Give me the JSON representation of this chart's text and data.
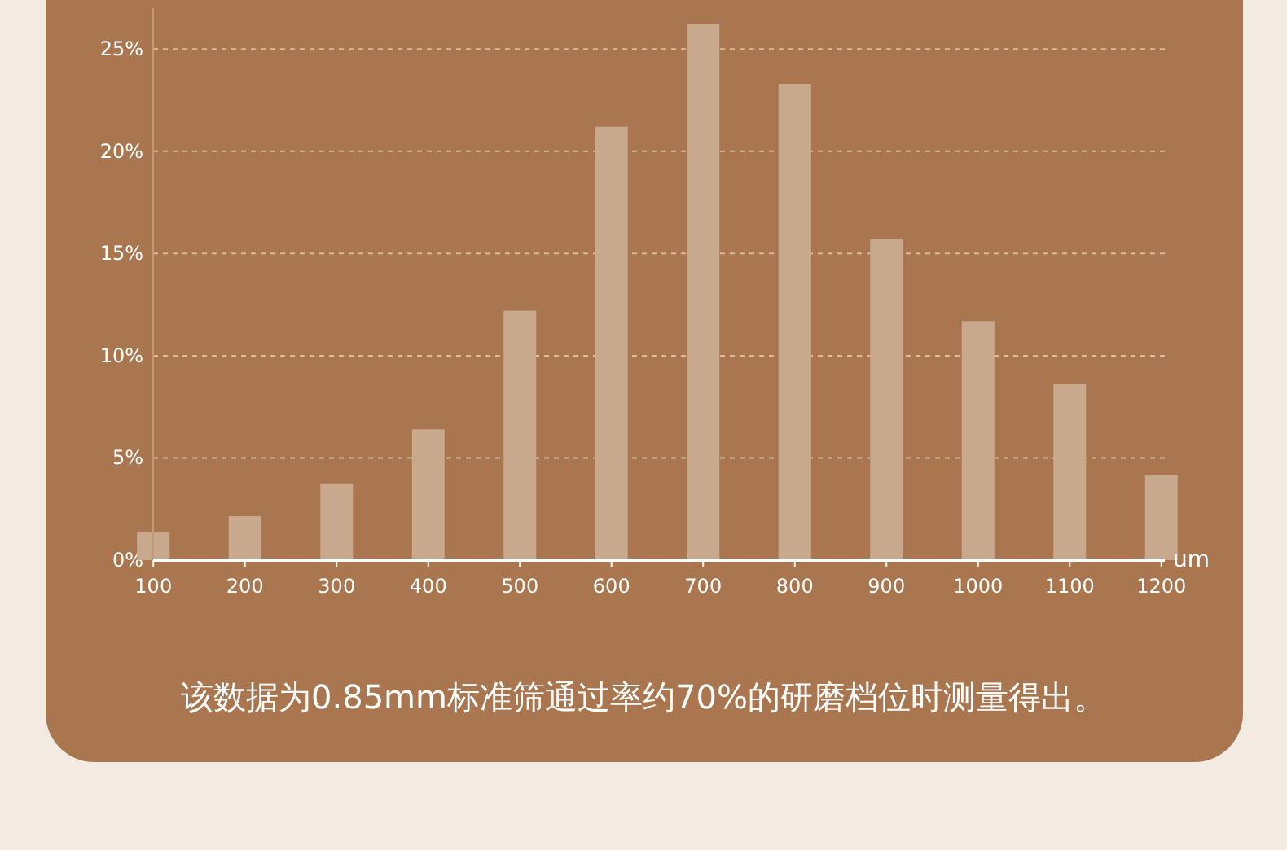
{
  "chart_data": {
    "type": "bar",
    "categories": [
      "100",
      "200",
      "300",
      "400",
      "500",
      "600",
      "700",
      "800",
      "900",
      "1000",
      "1100",
      "1200"
    ],
    "values": [
      1.35,
      2.15,
      3.75,
      6.4,
      12.2,
      21.2,
      26.2,
      23.3,
      15.7,
      11.7,
      8.6,
      4.15
    ],
    "color": "#c9a98e",
    "xlabel": "um",
    "ylim": [
      0,
      27
    ],
    "yticks": [
      {
        "value": 0,
        "label": "0%"
      },
      {
        "value": 5,
        "label": "5%"
      },
      {
        "value": 10,
        "label": "10%"
      },
      {
        "value": 15,
        "label": "15%"
      },
      {
        "value": 20,
        "label": "20%"
      },
      {
        "value": 25,
        "label": "25%"
      }
    ],
    "grid": "y",
    "annotations": [
      "该数据为0.85mm标准筛通过率约70%的研磨档位时测量得出。"
    ]
  }
}
